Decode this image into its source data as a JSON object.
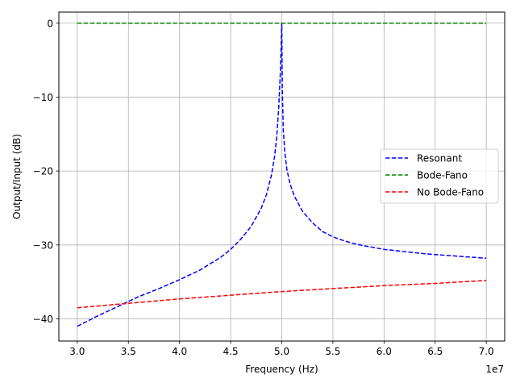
{
  "chart_data": {
    "type": "line",
    "title": "",
    "xlabel": "Frequency (Hz)",
    "ylabel": "Output/Input (dB)",
    "x_offset_label": "1e7",
    "xlim": [
      28200000,
      71800000
    ],
    "ylim": [
      -43,
      1.5
    ],
    "grid": true,
    "legend_position": "center-right",
    "xticks": [
      {
        "value": 30000000,
        "label": "3.0"
      },
      {
        "value": 35000000,
        "label": "3.5"
      },
      {
        "value": 40000000,
        "label": "4.0"
      },
      {
        "value": 45000000,
        "label": "4.5"
      },
      {
        "value": 50000000,
        "label": "5.0"
      },
      {
        "value": 55000000,
        "label": "5.5"
      },
      {
        "value": 60000000,
        "label": "6.0"
      },
      {
        "value": 65000000,
        "label": "6.5"
      },
      {
        "value": 70000000,
        "label": "7.0"
      }
    ],
    "yticks": [
      {
        "value": 0,
        "label": "0"
      },
      {
        "value": -10,
        "label": "−10"
      },
      {
        "value": -20,
        "label": "−20"
      },
      {
        "value": -30,
        "label": "−30"
      },
      {
        "value": -40,
        "label": "−40"
      }
    ],
    "series": [
      {
        "name": "Resonant",
        "color": "#0000ff",
        "style": "dashed",
        "x": [
          30000000,
          32000000,
          34000000,
          36000000,
          38000000,
          40000000,
          42000000,
          44000000,
          45000000,
          46000000,
          47000000,
          48000000,
          48500000,
          49000000,
          49300000,
          49500000,
          49700000,
          49850000,
          49950000,
          50000000,
          50050000,
          50150000,
          50300000,
          50500000,
          50800000,
          51200000,
          52000000,
          53000000,
          54000000,
          55000000,
          56000000,
          57000000,
          58000000,
          60000000,
          62000000,
          64000000,
          66000000,
          68000000,
          70000000
        ],
        "y": [
          -41,
          -39.6,
          -38.3,
          -37.0,
          -35.9,
          -34.7,
          -33.4,
          -31.7,
          -30.6,
          -29.2,
          -27.5,
          -25.0,
          -23.2,
          -20.5,
          -18.0,
          -15.5,
          -11.5,
          -7.0,
          -2.5,
          0,
          -9.0,
          -14.5,
          -17.5,
          -19.8,
          -21.7,
          -23.3,
          -25.4,
          -27.0,
          -28.2,
          -28.9,
          -29.4,
          -29.8,
          -30.1,
          -30.6,
          -30.9,
          -31.2,
          -31.4,
          -31.6,
          -31.8
        ]
      },
      {
        "name": "Bode-Fano",
        "color": "#008000",
        "style": "dashed",
        "x": [
          30000000,
          70000000
        ],
        "y": [
          0,
          0
        ]
      },
      {
        "name": "No Bode-Fano",
        "color": "#ff0000",
        "style": "dashed",
        "x": [
          30000000,
          35000000,
          40000000,
          45000000,
          50000000,
          55000000,
          60000000,
          65000000,
          70000000
        ],
        "y": [
          -38.5,
          -37.9,
          -37.3,
          -36.8,
          -36.3,
          -35.9,
          -35.5,
          -35.2,
          -34.8
        ]
      }
    ]
  }
}
